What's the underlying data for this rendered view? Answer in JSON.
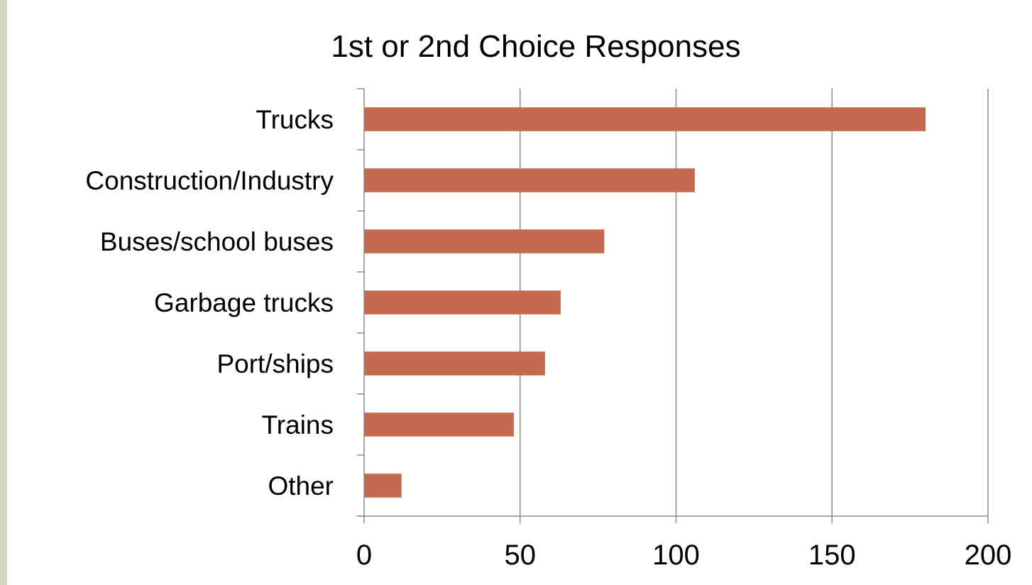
{
  "chart_data": {
    "type": "bar",
    "orientation": "horizontal",
    "title": "1st or 2nd Choice Responses",
    "xlabel": "",
    "ylabel": "",
    "categories": [
      "Trucks",
      "Construction/Industry",
      "Buses/school buses",
      "Garbage trucks",
      "Port/ships",
      "Trains",
      "Other"
    ],
    "values": [
      180,
      106,
      77,
      63,
      58,
      48,
      12
    ],
    "xlim": [
      0,
      200
    ],
    "xticks": [
      0,
      50,
      100,
      150,
      200
    ],
    "grid": true,
    "legend": "none",
    "bar_color": "#c5694f"
  }
}
